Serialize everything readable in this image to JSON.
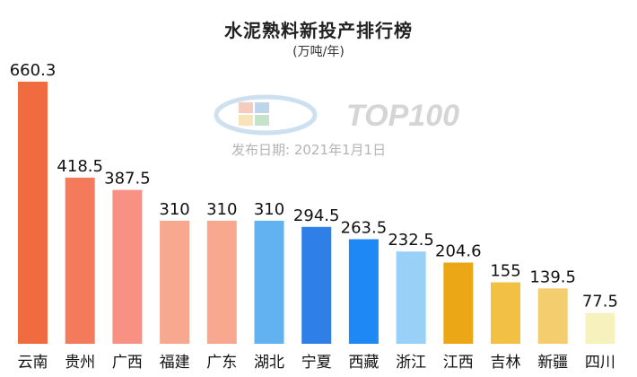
{
  "chart_data": {
    "type": "bar",
    "title": "水泥熟料新投产排行榜",
    "subtitle": "(万吨/年)",
    "categories": [
      "云南",
      "贵州",
      "广西",
      "福建",
      "广东",
      "湖北",
      "宁夏",
      "西藏",
      "浙江",
      "江西",
      "吉林",
      "新疆",
      "四川"
    ],
    "values": [
      660.3,
      418.5,
      387.5,
      310,
      310,
      310,
      294.5,
      263.5,
      232.5,
      204.6,
      155,
      139.5,
      77.5
    ],
    "value_labels": [
      "660.3",
      "418.5",
      "387.5",
      "310",
      "310",
      "310",
      "294.5",
      "263.5",
      "232.5",
      "204.6",
      "155",
      "139.5",
      "77.5"
    ],
    "colors": [
      "#f06b3f",
      "#f47a5c",
      "#f99084",
      "#f8a88e",
      "#f8a88e",
      "#62b2f2",
      "#2f7fe6",
      "#1e88f5",
      "#98d0f7",
      "#eca716",
      "#f2c144",
      "#f3cd6e",
      "#f7f1be"
    ],
    "ylim": [
      0,
      660.3
    ],
    "grid": false,
    "legend": "none"
  },
  "watermark": {
    "brand": "TOP100",
    "publish_date": "发布日期: 2021年1月1日"
  }
}
